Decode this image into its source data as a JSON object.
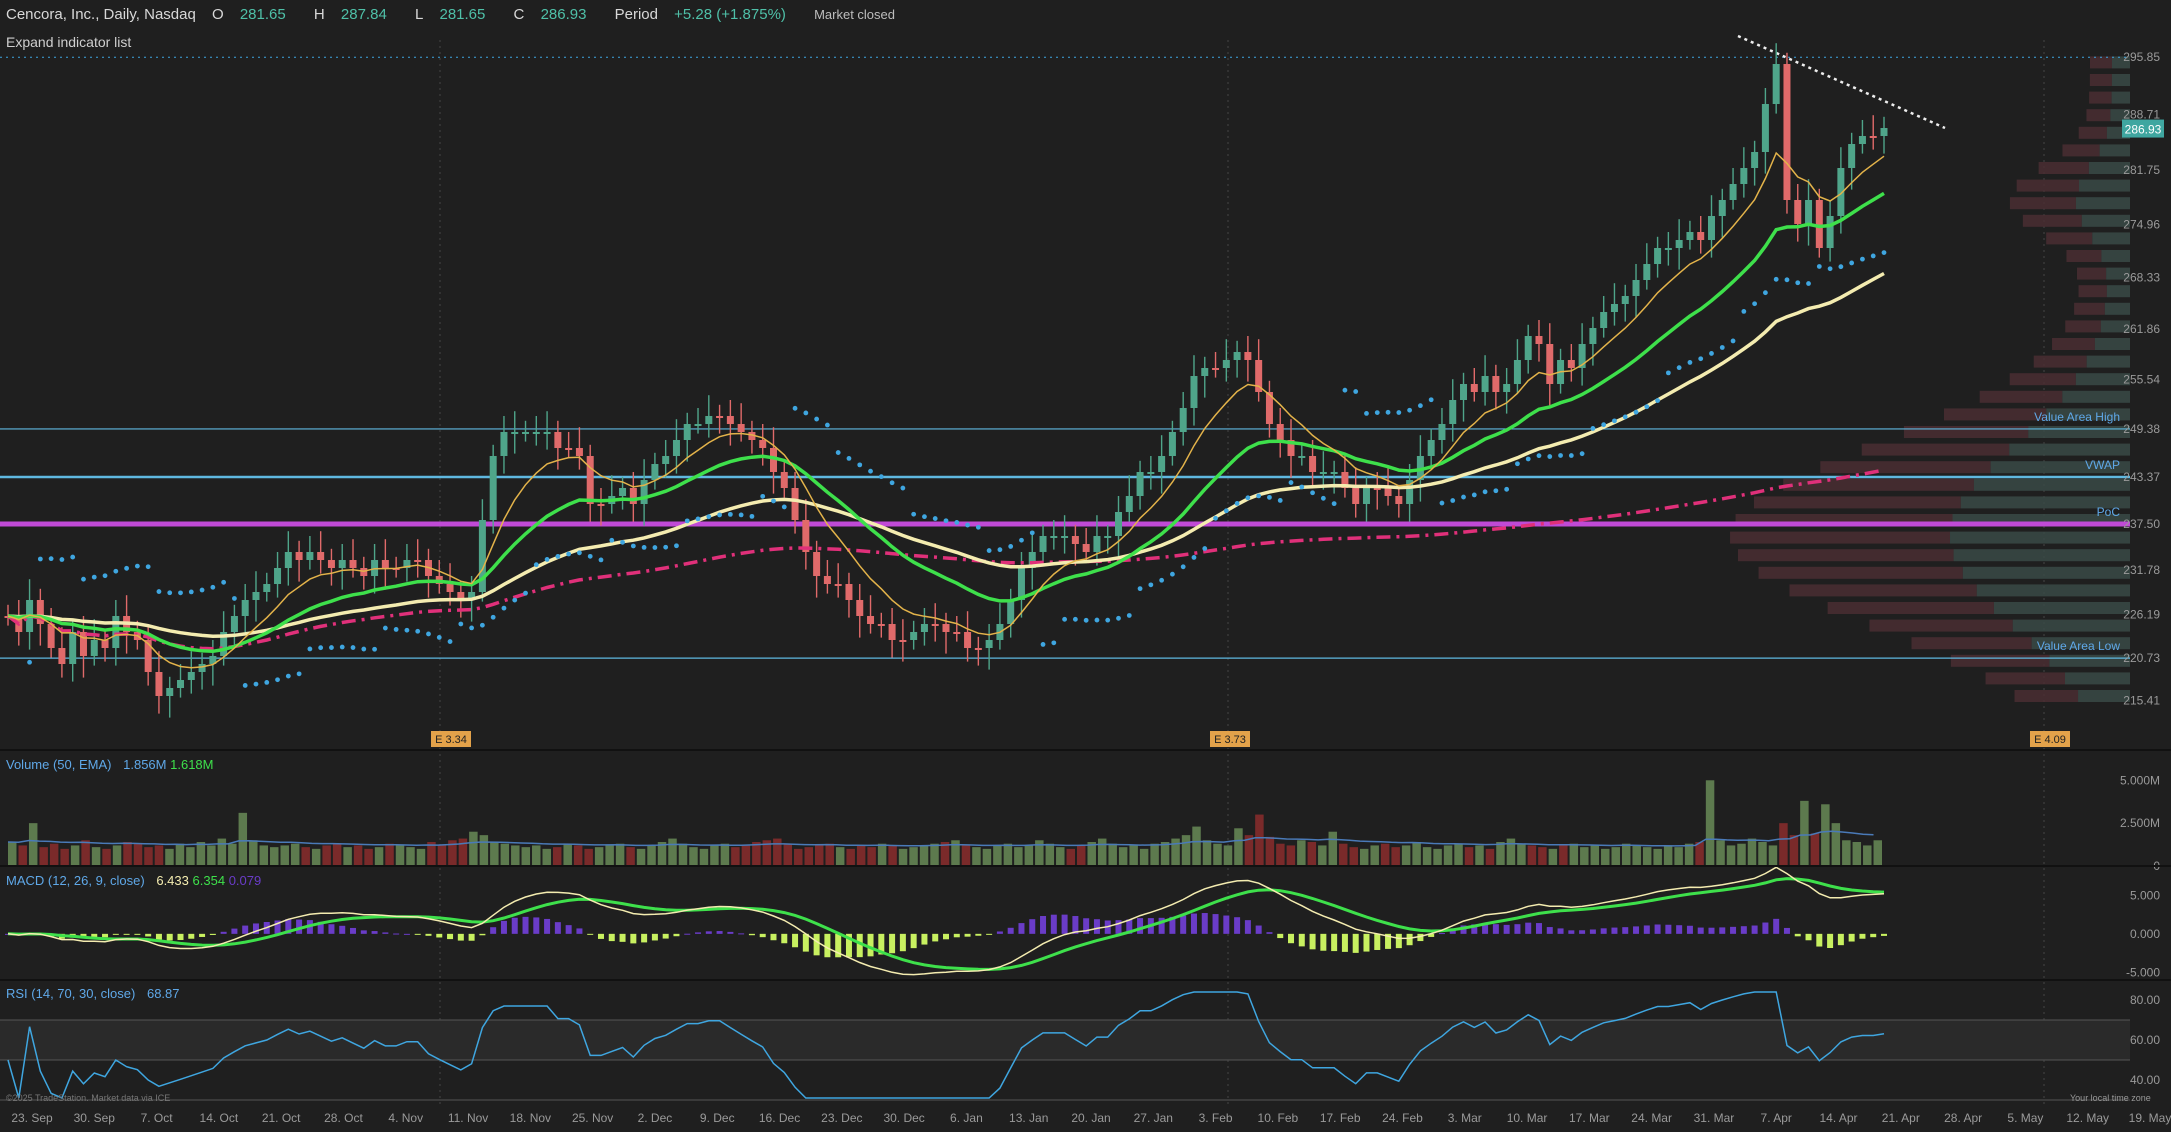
{
  "header": {
    "symbol": "Cencora, Inc., Daily, Nasdaq",
    "open_label": "O",
    "open": "281.65",
    "high_label": "H",
    "high": "287.84",
    "low_label": "L",
    "low": "281.65",
    "close_label": "C",
    "close": "286.93",
    "period_label": "Period",
    "period_change": "+5.28 (+1.875%)",
    "status": "Market closed"
  },
  "expand_label": "Expand indicator list",
  "copyright": "©2025 TradeStation. Market data via ICE",
  "timezone_note": "Your local time zone",
  "colors": {
    "up": "#4fa58a",
    "down": "#e06a6a",
    "ema_fast": "#e3b34a",
    "ema_mid": "#3ee04b",
    "ema_slow": "#f4ecb0",
    "psar": "#3fa6e0",
    "vwap_line": "#e0307a",
    "poc": "#c04ad6",
    "level": "#5fb8e0",
    "macd": "#f4ecb0",
    "signal": "#3ee04b",
    "hist_pos": "#6a3cc8",
    "hist_neg": "#c8f060",
    "rsi": "#3fa6e0",
    "vol_up": "#5d7a4e",
    "vol_down": "#7a2a2a"
  },
  "chart_data": [
    {
      "type": "candlestick",
      "panel": "price",
      "x_tick_labels": [
        "23. Sep",
        "30. Sep",
        "7. Oct",
        "14. Oct",
        "21. Oct",
        "28. Oct",
        "4. Nov",
        "11. Nov",
        "18. Nov",
        "25. Nov",
        "2. Dec",
        "9. Dec",
        "16. Dec",
        "23. Dec",
        "30. Dec",
        "6. Jan",
        "13. Jan",
        "20. Jan",
        "27. Jan",
        "3. Feb",
        "10. Feb",
        "17. Feb",
        "24. Feb",
        "3. Mar",
        "10. Mar",
        "17. Mar",
        "24. Mar",
        "31. Mar",
        "7. Apr",
        "14. Apr",
        "21. Apr",
        "28. Apr",
        "5. May",
        "12. May",
        "19. May"
      ],
      "y_tick_labels": [
        "295.85",
        "288.71",
        "281.75",
        "274.96",
        "268.33",
        "261.86",
        "255.54",
        "249.38",
        "243.37",
        "237.50",
        "231.78",
        "226.19",
        "220.73",
        "215.41"
      ],
      "last_price_tag": "286.93",
      "closes": [
        226,
        224,
        228,
        225,
        222,
        220,
        224,
        221,
        223,
        222,
        226,
        224,
        223,
        219,
        216,
        217,
        218,
        219,
        220,
        221,
        224,
        226,
        228,
        229,
        230,
        232,
        234,
        233,
        234,
        233,
        232,
        233,
        232,
        231,
        233,
        232,
        232,
        233,
        233,
        231,
        230,
        229,
        228,
        229,
        238,
        246,
        249,
        249,
        249,
        249,
        249,
        247,
        247,
        246,
        240,
        240,
        241,
        242,
        240,
        243,
        245,
        246,
        248,
        250,
        250,
        251,
        251,
        250,
        249,
        248,
        247,
        244,
        242,
        238,
        234,
        231,
        230,
        230,
        228,
        226,
        225,
        225,
        223,
        223,
        224,
        225,
        225,
        224,
        224,
        222,
        222,
        223,
        225,
        228,
        232,
        234,
        236,
        236,
        236,
        235,
        234,
        236,
        236,
        239,
        241,
        244,
        244,
        246,
        249,
        252,
        256,
        257,
        257,
        258,
        259,
        258,
        254,
        250,
        248,
        246,
        246,
        244,
        244,
        244,
        242,
        240,
        242,
        242,
        241,
        240,
        243,
        246,
        248,
        250,
        253,
        255,
        254,
        256,
        254,
        255,
        258,
        261,
        260,
        255,
        258,
        257,
        260,
        262,
        264,
        265,
        266,
        268,
        270,
        272,
        272,
        273,
        274,
        273,
        276,
        278,
        280,
        282,
        284,
        290,
        295,
        278,
        275,
        278,
        272,
        276,
        282,
        285,
        286,
        286,
        287
      ],
      "up_closes": [
        234,
        249,
        246,
        250,
        236,
        244,
        256,
        258,
        244,
        246,
        254,
        261,
        264,
        272,
        282,
        287
      ],
      "series": [
        {
          "name": "EMA fast"
        },
        {
          "name": "EMA mid"
        },
        {
          "name": "EMA slow"
        },
        {
          "name": "Parabolic SAR"
        },
        {
          "name": "VWAP"
        }
      ],
      "levels": [
        {
          "label": "Value Area High",
          "value": 249.38
        },
        {
          "label": "VWAP",
          "value": 243.37
        },
        {
          "label": "PoC",
          "value": 237.5
        },
        {
          "label": "Value Area Low",
          "value": 220.73
        }
      ],
      "resistance_level": 295.85,
      "earnings_labels": [
        "E 3.34",
        "E 3.73",
        "E 4.09"
      ]
    },
    {
      "type": "bar",
      "panel": "volume",
      "title": "Volume (50, EMA)",
      "legend_values": [
        "1.856M",
        "1.618M"
      ],
      "y_tick_labels": [
        "5.000M",
        "2.500M",
        "0"
      ],
      "values_millions_sample": [
        1.4,
        1.2,
        2.5,
        1.1,
        1.3,
        1.0,
        1.2,
        1.5,
        1.1,
        1.0,
        1.2,
        1.4,
        1.3,
        1.1,
        1.2,
        1.0,
        1.3,
        1.1,
        1.4,
        1.2,
        1.6,
        1.3,
        3.1,
        1.5,
        1.2,
        1.1,
        1.2,
        1.3,
        1.1,
        1.0,
        1.2,
        1.3,
        1.1,
        1.2,
        1.0,
        1.1,
        1.3,
        1.2,
        1.1,
        1.0,
        1.4,
        1.2,
        1.5,
        1.6,
        2.0,
        1.8,
        1.4,
        1.3,
        1.2,
        1.1,
        1.2,
        1.0,
        1.1,
        1.3,
        1.2,
        1.0,
        1.1,
        1.2,
        1.3,
        1.1,
        1.0,
        1.2,
        1.4,
        1.6,
        1.3,
        1.1,
        1.0,
        1.2,
        1.3,
        1.1,
        1.2,
        1.4,
        1.5,
        1.6,
        1.3,
        1.0,
        1.1,
        1.2,
        1.3,
        1.1,
        1.0,
        1.2,
        1.1,
        1.3,
        1.2,
        1.0,
        1.1,
        1.2,
        1.3,
        1.4,
        1.5,
        1.2,
        1.1,
        1.0,
        1.2,
        1.3,
        1.1,
        1.2,
        1.5,
        1.3,
        1.1,
        1.0,
        1.2,
        1.4,
        1.6,
        1.3,
        1.1,
        1.2,
        1.0,
        1.3,
        1.4,
        1.6,
        1.8,
        2.3,
        1.5,
        1.3,
        1.2,
        2.2,
        1.8,
        3.0,
        1.7,
        1.3,
        1.2,
        1.5,
        1.4,
        1.2,
        2.0,
        1.3,
        1.1,
        1.0,
        1.2,
        1.3,
        1.1,
        1.2,
        1.4,
        1.1,
        1.0,
        1.2,
        1.3,
        1.1,
        1.2,
        1.0,
        1.4,
        1.6,
        1.3,
        1.2,
        1.1,
        1.0,
        1.2,
        1.3,
        1.1,
        1.2,
        1.0,
        1.1,
        1.3,
        1.2,
        1.1,
        1.0,
        1.2,
        1.1,
        1.3,
        1.4,
        5.0,
        1.5,
        1.2,
        1.3,
        1.6,
        1.4,
        1.2,
        2.5,
        1.8,
        3.8,
        1.9,
        3.6,
        2.5,
        1.5,
        1.4,
        1.2,
        1.5
      ]
    },
    {
      "type": "line",
      "panel": "macd",
      "title": "MACD (12, 26, 9, close)",
      "legend_values": [
        "6.433",
        "6.354",
        "0.079"
      ],
      "y_tick_labels": [
        "5.000",
        "0.000",
        "-5.000"
      ]
    },
    {
      "type": "line",
      "panel": "rsi",
      "title": "RSI (14, 70, 30, close)",
      "legend_values": [
        "68.87"
      ],
      "y_tick_labels": [
        "80.00",
        "60.00",
        "40.00"
      ],
      "guide_levels": [
        70,
        30
      ]
    }
  ]
}
